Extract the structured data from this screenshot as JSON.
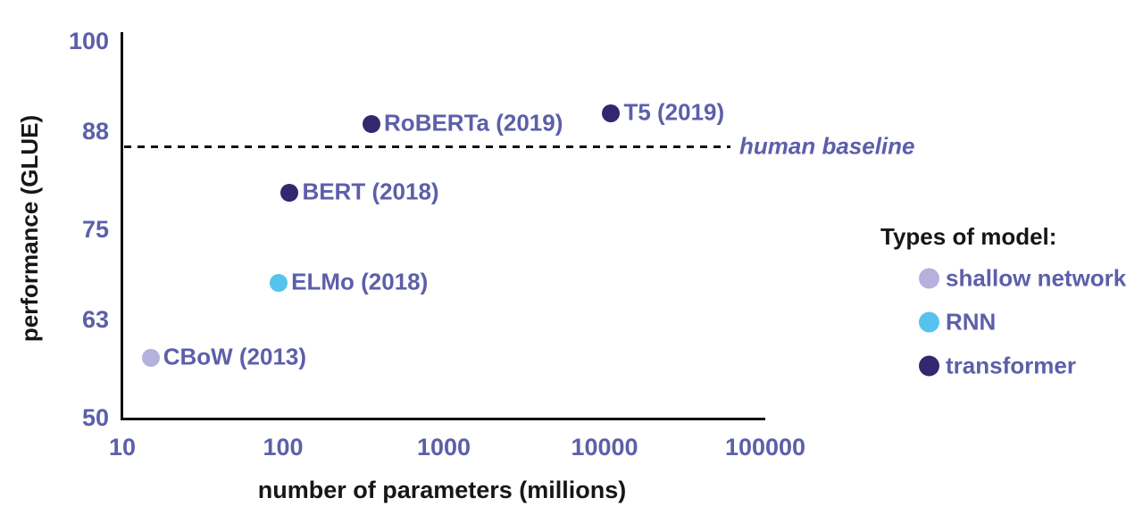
{
  "chart_data": {
    "type": "scatter",
    "title": "",
    "xlabel": "number of parameters (millions)",
    "ylabel": "performance (GLUE)",
    "x_scale": "log10",
    "xlim": [
      10,
      100000
    ],
    "ylim": [
      50,
      100
    ],
    "grid": false,
    "x_ticks": [
      {
        "label": "10",
        "value": 10
      },
      {
        "label": "100",
        "value": 100
      },
      {
        "label": "1000",
        "value": 1000
      },
      {
        "label": "10000",
        "value": 10000
      },
      {
        "label": "100000",
        "value": 100000
      }
    ],
    "y_ticks": [
      {
        "label": "50",
        "value": 50
      },
      {
        "label": "63",
        "value": 63
      },
      {
        "label": "75",
        "value": 75
      },
      {
        "label": "88",
        "value": 88
      },
      {
        "label": "100",
        "value": 100
      }
    ],
    "points": [
      {
        "label": "CBoW (2013)",
        "params_millions": 15,
        "glue": 58,
        "type": "shallow network"
      },
      {
        "label": "ELMo (2018)",
        "params_millions": 94,
        "glue": 68,
        "type": "RNN"
      },
      {
        "label": "BERT (2018)",
        "params_millions": 110,
        "glue": 80,
        "type": "transformer"
      },
      {
        "label": "RoBERTa (2019)",
        "params_millions": 355,
        "glue": 89,
        "type": "transformer"
      },
      {
        "label": "T5 (2019)",
        "params_millions": 11000,
        "glue": 90.5,
        "type": "transformer"
      }
    ],
    "baseline": {
      "label": "human baseline",
      "value": 86
    },
    "legend": {
      "title": "Types of model:",
      "position": "right",
      "items": [
        {
          "label": "shallow network",
          "color": "#b5b0dc"
        },
        {
          "label": "RNN",
          "color": "#55c3ee"
        },
        {
          "label": "transformer",
          "color": "#332770"
        }
      ]
    },
    "colors": {
      "accent_text": "#5c5fa9",
      "axis": "#111111",
      "background": "#ffffff"
    }
  }
}
